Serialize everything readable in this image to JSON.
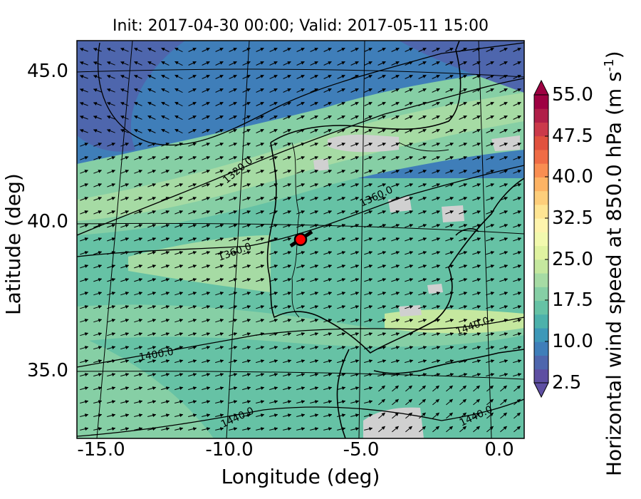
{
  "title": "Init: 2017-04-30 00:00; Valid: 2017-05-11 15:00",
  "xlabel": "Longitude (deg)",
  "ylabel": "Latitude (deg)",
  "colorbar": {
    "label": "Horizontal wind speed at 850.0 hPa (m s",
    "label_exp": "-1",
    "label_close": ")",
    "min": 2.5,
    "max": 55.0,
    "ticks": [
      "55.0",
      "47.5",
      "40.0",
      "32.5",
      "25.0",
      "17.5",
      "10.0",
      "2.5"
    ],
    "colors": [
      "#5e4fa2",
      "#4e66ad",
      "#3f7eb9",
      "#3d98b8",
      "#4cb1ab",
      "#66c2a5",
      "#86cfa5",
      "#a6dba4",
      "#c5e89f",
      "#e0f3a1",
      "#f2f9ae",
      "#fef4ad",
      "#fee593",
      "#fdce7b",
      "#fdb364",
      "#f98e52",
      "#ef6c46",
      "#e0513e",
      "#cb3a4a",
      "#b01f48",
      "#9e0142"
    ]
  },
  "map": {
    "x_ticks": [
      "-15.0",
      "-10.0",
      "-5.0",
      "0.0"
    ],
    "y_ticks": [
      "45.0",
      "40.0",
      "35.0"
    ],
    "contour_labels": [
      "1320.0",
      "1360.0",
      "1360.0",
      "1400.0",
      "1440.0",
      "1440.0",
      "1440.0"
    ],
    "marker_color": "#ff0000"
  }
}
